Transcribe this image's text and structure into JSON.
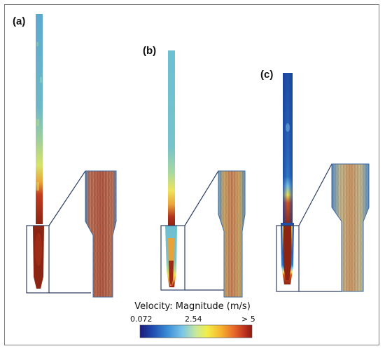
{
  "panels": [
    {
      "label": "(a)"
    },
    {
      "label": "(b)"
    },
    {
      "label": "(c)"
    }
  ],
  "colorbar": {
    "title": "Velocity: Magnitude (m/s)",
    "min_label": "0.072",
    "mid_label": "2.54",
    "max_label": "> 5",
    "stops": [
      "#1a1a7a",
      "#1f4fb3",
      "#3d8fd6",
      "#7cc6e6",
      "#c9e89a",
      "#f2ee48",
      "#f6b52e",
      "#e8682a",
      "#c23320",
      "#8c1a12"
    ]
  },
  "colors": {
    "outline": "#2d3f66",
    "deep_red": "#8b2413",
    "teal": "#6fb8d0"
  }
}
